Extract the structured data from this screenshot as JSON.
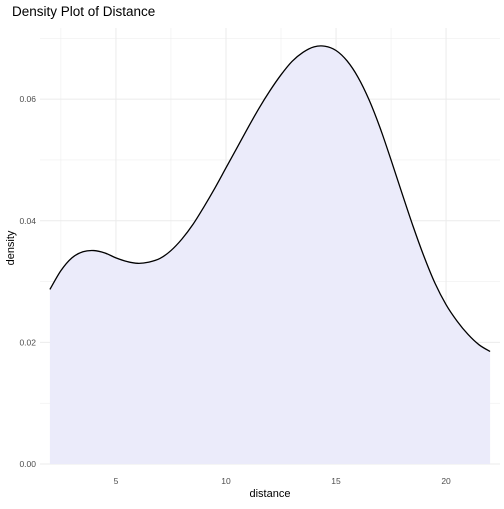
{
  "chart_data": {
    "type": "area",
    "title": "Density Plot of Distance",
    "xlabel": "distance",
    "ylabel": "density",
    "xlim": [
      1.55,
      22.45
    ],
    "ylim": [
      0,
      0.0717
    ],
    "x_ticks": [
      5,
      10,
      15,
      20
    ],
    "y_ticks": [
      0.0,
      0.02,
      0.04,
      0.06
    ],
    "y_tick_labels": [
      "0.00",
      "0.02",
      "0.04",
      "0.06"
    ],
    "grid": true,
    "fill_color": "#ebebfa",
    "line_color": "#000000",
    "grid_color": "#ebebeb",
    "series": [
      {
        "x": [
          2.0,
          2.5,
          3.0,
          3.5,
          4.0,
          4.5,
          5.0,
          5.5,
          6.0,
          6.5,
          7.0,
          7.5,
          8.0,
          8.5,
          9.0,
          9.5,
          10.0,
          10.5,
          11.0,
          11.5,
          12.0,
          12.5,
          13.0,
          13.5,
          14.0,
          14.5,
          15.0,
          15.5,
          16.0,
          16.5,
          17.0,
          17.5,
          18.0,
          18.5,
          19.0,
          19.5,
          20.0,
          20.5,
          21.0,
          21.5,
          22.0
        ],
        "values": [
          0.0287,
          0.0318,
          0.0339,
          0.0349,
          0.0351,
          0.0347,
          0.0339,
          0.0333,
          0.033,
          0.0332,
          0.0338,
          0.0351,
          0.037,
          0.0394,
          0.0423,
          0.0454,
          0.0487,
          0.052,
          0.0553,
          0.0585,
          0.0614,
          0.064,
          0.0662,
          0.0677,
          0.0686,
          0.0687,
          0.068,
          0.0663,
          0.0636,
          0.0599,
          0.0553,
          0.05,
          0.0445,
          0.0391,
          0.0341,
          0.0297,
          0.0262,
          0.0235,
          0.0213,
          0.0196,
          0.0185
        ]
      }
    ]
  }
}
